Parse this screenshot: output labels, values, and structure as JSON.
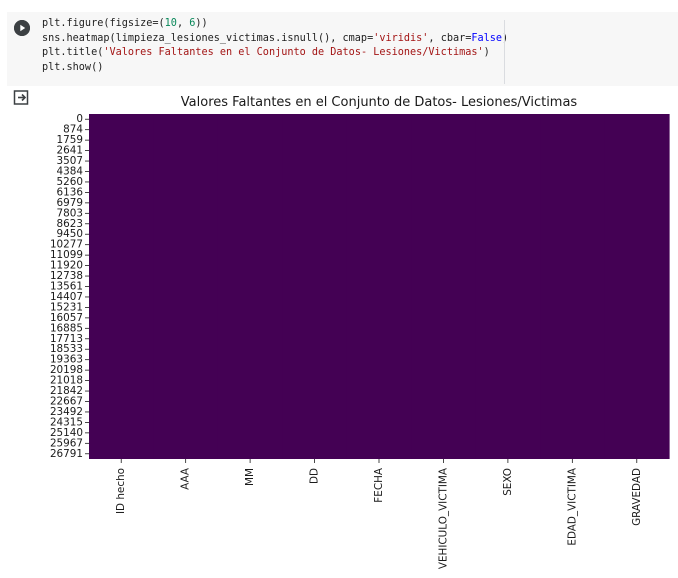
{
  "code_cell": {
    "run_button_icon": "play-circle-icon",
    "lines": [
      [
        {
          "t": "plt.figure(figsize=(",
          "c": ""
        },
        {
          "t": "10",
          "c": "num"
        },
        {
          "t": ", ",
          "c": ""
        },
        {
          "t": "6",
          "c": "num"
        },
        {
          "t": "))",
          "c": ""
        }
      ],
      [
        {
          "t": "sns.heatmap(limpieza_lesiones_victimas.isnull(), cmap=",
          "c": ""
        },
        {
          "t": "'viridis'",
          "c": "str"
        },
        {
          "t": ", cbar=",
          "c": ""
        },
        {
          "t": "False",
          "c": "kw"
        },
        {
          "t": ")",
          "c": ""
        }
      ],
      [
        {
          "t": "plt.title(",
          "c": ""
        },
        {
          "t": "'Valores Faltantes en el Conjunto de Datos- Lesiones/Victimas'",
          "c": "str"
        },
        {
          "t": ")",
          "c": ""
        }
      ],
      [
        {
          "t": "plt.show()",
          "c": ""
        }
      ]
    ]
  },
  "output": {
    "icon": "output-redirect-icon"
  },
  "chart_data": {
    "type": "heatmap",
    "title": "Valores Faltantes en el Conjunto de Datos- Lesiones/Victimas",
    "colormap": "viridis",
    "colorbar": false,
    "fill_color": "#440154",
    "missing_values": "none",
    "y_tick_labels": [
      "0",
      "874",
      "1759",
      "2641",
      "3507",
      "4384",
      "5260",
      "6136",
      "6979",
      "7803",
      "8623",
      "9450",
      "10277",
      "11099",
      "11920",
      "12738",
      "13561",
      "14407",
      "15231",
      "16057",
      "16885",
      "17713",
      "18533",
      "19363",
      "20198",
      "21018",
      "21842",
      "22667",
      "23492",
      "24315",
      "25140",
      "25967",
      "26791"
    ],
    "x_tick_labels": [
      "ID hecho",
      "AAA",
      "MM",
      "DD",
      "FECHA",
      "VEHICULO_VICTIMA",
      "SEXO",
      "EDAD_VICTIMA",
      "GRAVEDAD"
    ]
  }
}
